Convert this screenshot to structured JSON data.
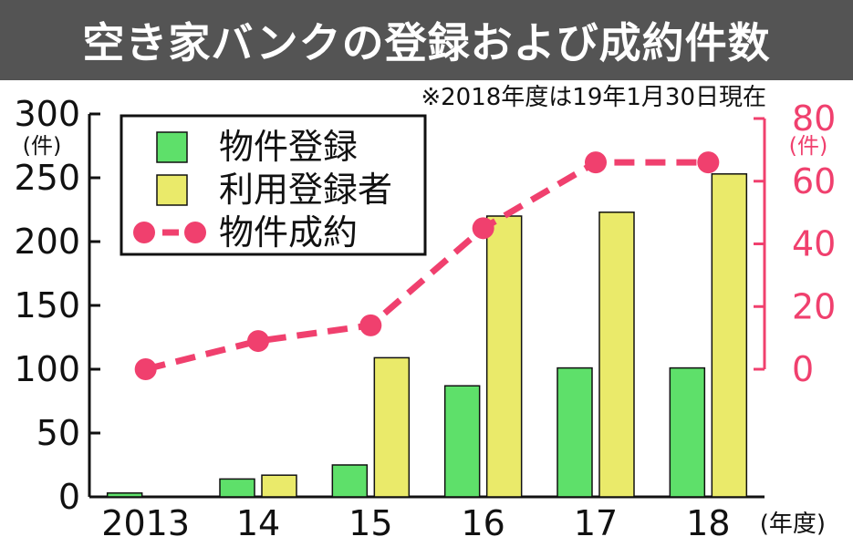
{
  "title": "空き家バンクの登録および成約件数",
  "note": "※2018年度は19年1月30日現在",
  "colors": {
    "title_bg": "#545454",
    "title_text": "#ffffff",
    "bar_registration": "#5ee06a",
    "bar_users": "#eaea6a",
    "line_contracts": "#f0406e",
    "axis": "#111111"
  },
  "chart_data": {
    "type": "bar",
    "categories": [
      "2013",
      "14",
      "15",
      "16",
      "17",
      "18"
    ],
    "x_unit": "(年度)",
    "y_left": {
      "unit": "(件)",
      "ylim": [
        0,
        300
      ],
      "ticks": [
        0,
        50,
        100,
        150,
        200,
        250,
        300
      ]
    },
    "y_right": {
      "unit": "(件)",
      "ylim": [
        0,
        80
      ],
      "ticks": [
        0,
        20,
        40,
        60,
        80
      ]
    },
    "series": [
      {
        "name": "物件登録",
        "type": "bar",
        "axis": "left",
        "color": "#5ee06a",
        "values": [
          3,
          14,
          25,
          87,
          101,
          101
        ]
      },
      {
        "name": "利用登録者",
        "type": "bar",
        "axis": "left",
        "color": "#eaea6a",
        "values": [
          0,
          17,
          109,
          220,
          223,
          253
        ]
      },
      {
        "name": "物件成約",
        "type": "line",
        "style": "dashed-with-markers",
        "axis": "right",
        "color": "#f0406e",
        "values": [
          0,
          9,
          14,
          45,
          66,
          66
        ]
      }
    ],
    "legend": {
      "placement": "top-left",
      "entries": [
        "物件登録",
        "利用登録者",
        "物件成約"
      ]
    },
    "grid": false
  }
}
